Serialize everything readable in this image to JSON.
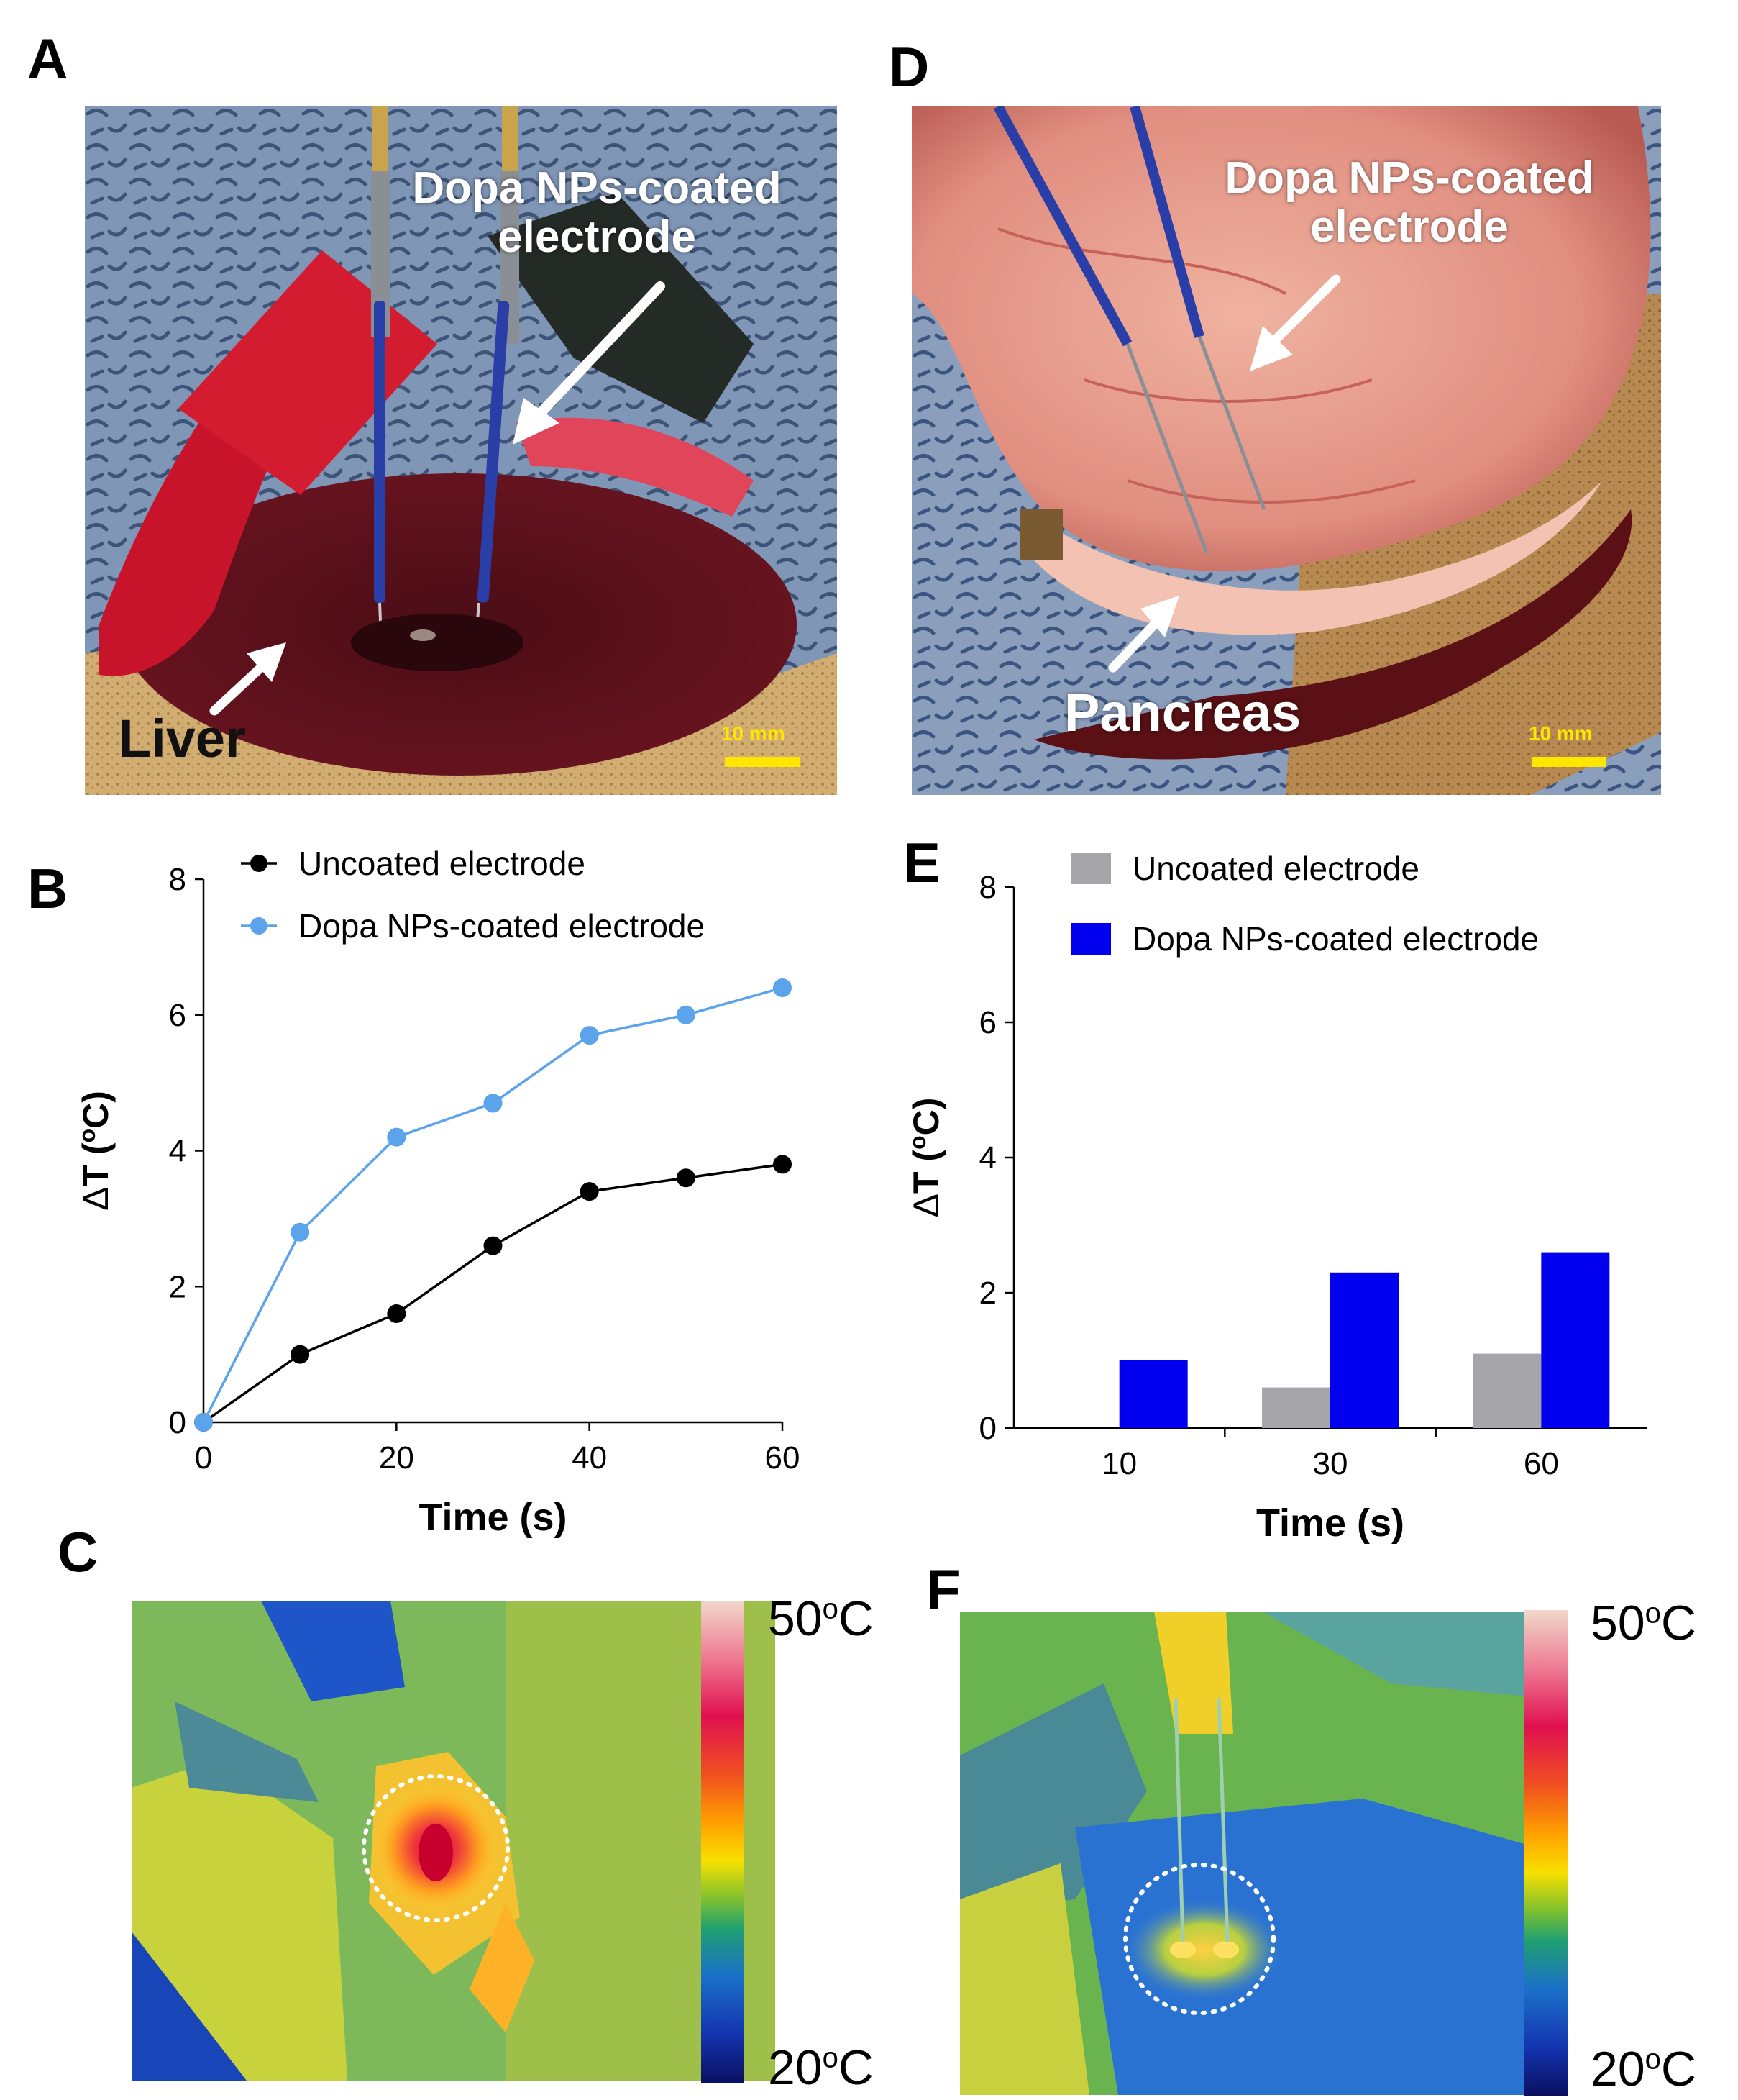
{
  "panels": {
    "a": {
      "letter": "A",
      "electrode_label_line1": "Dopa NPs-coated",
      "electrode_label_line2": "electrode",
      "organ_label": "Liver",
      "scale_label": "10 mm"
    },
    "b": {
      "letter": "B"
    },
    "c": {
      "letter": "C",
      "colorbar_max": "50",
      "colorbar_min": "20",
      "unit_sup": "o",
      "unit": "C"
    },
    "d": {
      "letter": "D",
      "electrode_label_line1": "Dopa NPs-coated",
      "electrode_label_line2": "electrode",
      "organ_label": "Pancreas",
      "scale_label": "10 mm"
    },
    "e": {
      "letter": "E"
    },
    "f": {
      "letter": "F",
      "colorbar_max": "50",
      "colorbar_min": "20",
      "unit_sup": "o",
      "unit": "C"
    }
  },
  "colors": {
    "uncoated_line": "#000000",
    "coated_line": "#5ba3ea",
    "uncoated_bar": "#a6a6aa",
    "coated_bar": "#0000ee"
  },
  "chart_data": [
    {
      "id": "B",
      "type": "line",
      "x": [
        0,
        10,
        20,
        30,
        40,
        50,
        60
      ],
      "series": [
        {
          "name": "Uncoated electrode",
          "values": [
            0,
            1.0,
            1.6,
            2.6,
            3.4,
            3.6,
            3.8
          ]
        },
        {
          "name": "Dopa NPs-coated electrode",
          "values": [
            0,
            2.8,
            4.2,
            4.7,
            5.7,
            6.0,
            6.4
          ]
        }
      ],
      "xlabel": "Time (s)",
      "ylabel": "ΔT (°C)",
      "ylabel_parts": {
        "delta": "Δ",
        "symbol": "T (",
        "sup": "o",
        "unit": "C)"
      },
      "xlim": [
        0,
        60
      ],
      "ylim": [
        0,
        8
      ],
      "xticks": [
        "0",
        "20",
        "40",
        "60"
      ],
      "yticks": [
        "0",
        "2",
        "4",
        "6",
        "8"
      ],
      "legend": "top-left",
      "grid": false
    },
    {
      "id": "E",
      "type": "bar",
      "categories": [
        "10",
        "30",
        "60"
      ],
      "series": [
        {
          "name": "Uncoated electrode",
          "values": [
            0,
            0.6,
            1.1
          ]
        },
        {
          "name": "Dopa NPs-coated electrode",
          "values": [
            1.0,
            2.3,
            2.6
          ]
        }
      ],
      "xlabel": "Time (s)",
      "ylabel": "ΔT (°C)",
      "ylabel_parts": {
        "delta": "Δ",
        "symbol": "T (",
        "sup": "o",
        "unit": "C)"
      },
      "ylim": [
        0,
        8
      ],
      "yticks": [
        "0",
        "2",
        "4",
        "6",
        "8"
      ],
      "legend": "top",
      "grid": false
    }
  ]
}
